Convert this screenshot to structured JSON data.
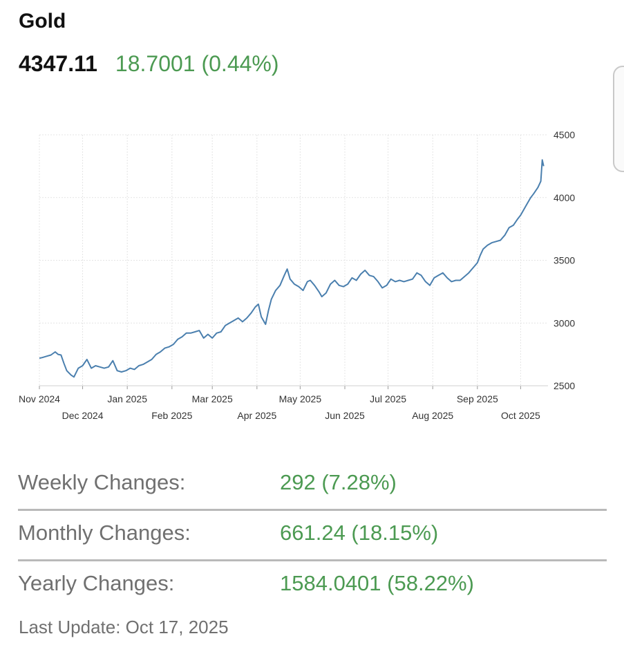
{
  "header": {
    "title": "Gold",
    "price": "4347.11",
    "change": "18.7001 (0.44%)"
  },
  "stats": [
    {
      "label": "Weekly Changes:",
      "value": "292 (7.28%)"
    },
    {
      "label": "Monthly Changes:",
      "value": "661.24 (18.15%)"
    },
    {
      "label": "Yearly Changes:",
      "value": "1584.0401 (58.22%)"
    }
  ],
  "last_update": "Last Update: Oct 17, 2025",
  "chart_data": {
    "type": "line",
    "title": "",
    "xlabel": "",
    "ylabel": "",
    "grid": true,
    "ylim": [
      2500,
      4500
    ],
    "xlim": [
      "2024-11-01",
      "2025-10-20"
    ],
    "y_ticks": [
      2500,
      3000,
      3500,
      4000,
      4500
    ],
    "x_ticks": [
      {
        "date": "2024-11-01",
        "label": "Nov 2024"
      },
      {
        "date": "2024-12-01",
        "label": "Dec 2024"
      },
      {
        "date": "2025-01-01",
        "label": "Jan 2025"
      },
      {
        "date": "2025-02-01",
        "label": "Feb 2025"
      },
      {
        "date": "2025-03-01",
        "label": "Mar 2025"
      },
      {
        "date": "2025-04-01",
        "label": "Apr 2025"
      },
      {
        "date": "2025-05-01",
        "label": "May 2025"
      },
      {
        "date": "2025-06-01",
        "label": "Jun 2025"
      },
      {
        "date": "2025-07-01",
        "label": "Jul 2025"
      },
      {
        "date": "2025-08-01",
        "label": "Aug 2025"
      },
      {
        "date": "2025-09-01",
        "label": "Sep 2025"
      },
      {
        "date": "2025-10-01",
        "label": "Oct 2025"
      }
    ],
    "line_color": "#4a7fae",
    "series": [
      {
        "x": [
          "2024-11-01",
          "2024-11-03",
          "2024-11-06",
          "2024-11-09",
          "2024-11-12",
          "2024-11-14",
          "2024-11-16",
          "2024-11-18",
          "2024-11-20",
          "2024-11-23",
          "2024-11-25",
          "2024-11-28",
          "2024-12-01",
          "2024-12-04",
          "2024-12-07",
          "2024-12-10",
          "2024-12-13",
          "2024-12-16",
          "2024-12-19",
          "2024-12-22",
          "2024-12-25",
          "2024-12-28",
          "2024-12-31",
          "2025-01-03",
          "2025-01-06",
          "2025-01-09",
          "2025-01-12",
          "2025-01-15",
          "2025-01-18",
          "2025-01-21",
          "2025-01-24",
          "2025-01-27",
          "2025-01-30",
          "2025-02-02",
          "2025-02-05",
          "2025-02-08",
          "2025-02-11",
          "2025-02-14",
          "2025-02-17",
          "2025-02-20",
          "2025-02-23",
          "2025-02-26",
          "2025-03-01",
          "2025-03-04",
          "2025-03-07",
          "2025-03-10",
          "2025-03-13",
          "2025-03-16",
          "2025-03-19",
          "2025-03-22",
          "2025-03-25",
          "2025-03-28",
          "2025-03-31",
          "2025-04-02",
          "2025-04-04",
          "2025-04-07",
          "2025-04-09",
          "2025-04-11",
          "2025-04-14",
          "2025-04-17",
          "2025-04-20",
          "2025-04-22",
          "2025-04-24",
          "2025-04-27",
          "2025-04-30",
          "2025-05-03",
          "2025-05-06",
          "2025-05-08",
          "2025-05-11",
          "2025-05-14",
          "2025-05-16",
          "2025-05-19",
          "2025-05-22",
          "2025-05-25",
          "2025-05-28",
          "2025-05-31",
          "2025-06-03",
          "2025-06-06",
          "2025-06-09",
          "2025-06-12",
          "2025-06-15",
          "2025-06-18",
          "2025-06-21",
          "2025-06-24",
          "2025-06-27",
          "2025-06-30",
          "2025-07-03",
          "2025-07-06",
          "2025-07-09",
          "2025-07-12",
          "2025-07-15",
          "2025-07-18",
          "2025-07-21",
          "2025-07-24",
          "2025-07-27",
          "2025-07-30",
          "2025-08-02",
          "2025-08-05",
          "2025-08-08",
          "2025-08-11",
          "2025-08-14",
          "2025-08-17",
          "2025-08-20",
          "2025-08-23",
          "2025-08-26",
          "2025-08-29",
          "2025-09-01",
          "2025-09-03",
          "2025-09-05",
          "2025-09-08",
          "2025-09-11",
          "2025-09-14",
          "2025-09-17",
          "2025-09-20",
          "2025-09-23",
          "2025-09-26",
          "2025-09-29",
          "2025-10-01",
          "2025-10-03",
          "2025-10-06",
          "2025-10-08",
          "2025-10-10",
          "2025-10-13",
          "2025-10-15",
          "2025-10-16",
          "2025-10-17"
        ],
        "y": [
          2720,
          2725,
          2735,
          2745,
          2770,
          2750,
          2745,
          2680,
          2620,
          2585,
          2570,
          2640,
          2660,
          2710,
          2640,
          2660,
          2650,
          2640,
          2650,
          2700,
          2620,
          2610,
          2620,
          2640,
          2630,
          2660,
          2670,
          2690,
          2710,
          2750,
          2770,
          2800,
          2810,
          2830,
          2870,
          2890,
          2920,
          2920,
          2930,
          2940,
          2880,
          2910,
          2880,
          2920,
          2930,
          2980,
          3000,
          3020,
          3040,
          3010,
          3040,
          3080,
          3130,
          3150,
          3050,
          2990,
          3100,
          3190,
          3260,
          3300,
          3380,
          3430,
          3350,
          3310,
          3290,
          3260,
          3330,
          3340,
          3300,
          3250,
          3210,
          3240,
          3310,
          3340,
          3300,
          3290,
          3310,
          3360,
          3340,
          3390,
          3420,
          3380,
          3370,
          3330,
          3280,
          3300,
          3350,
          3330,
          3340,
          3330,
          3340,
          3350,
          3400,
          3380,
          3330,
          3300,
          3360,
          3380,
          3400,
          3360,
          3330,
          3340,
          3340,
          3370,
          3400,
          3440,
          3480,
          3540,
          3590,
          3620,
          3640,
          3650,
          3660,
          3700,
          3760,
          3780,
          3830,
          3860,
          3900,
          3960,
          4000,
          4030,
          4080,
          4130,
          4300,
          4250
        ]
      }
    ]
  }
}
